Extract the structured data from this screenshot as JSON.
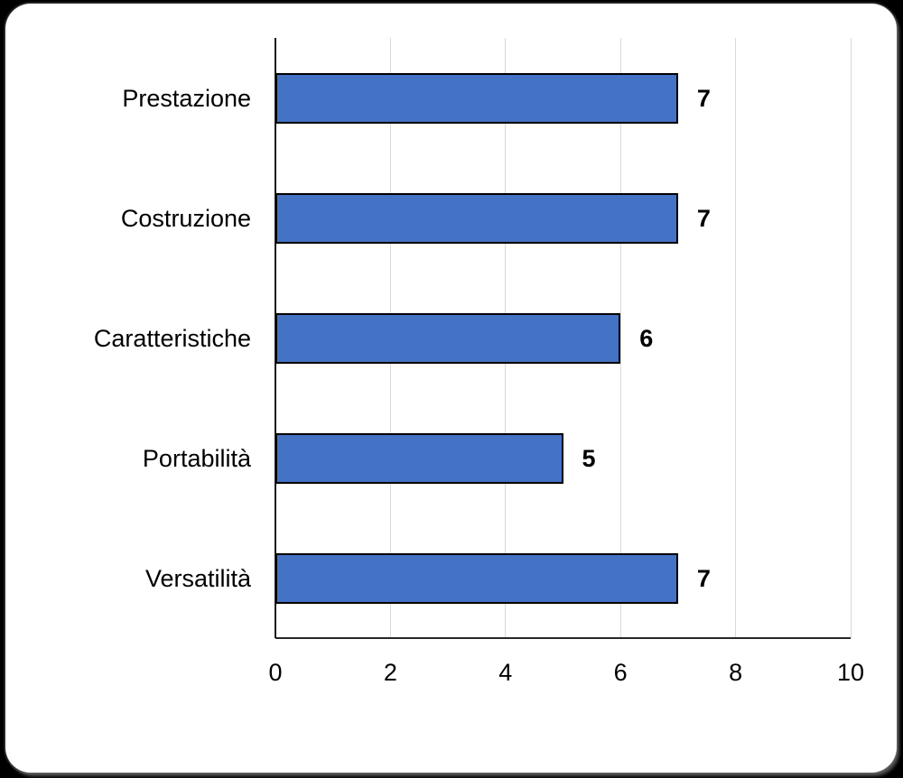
{
  "canvas": {
    "background_color": "#000000",
    "card_background_color": "#ffffff"
  },
  "chart_data": {
    "type": "bar",
    "orientation": "horizontal",
    "title": "",
    "xlabel": "",
    "ylabel": "",
    "categories": [
      "Prestazione",
      "Costruzione",
      "Caratteristiche",
      "Portabilità",
      "Versatilità"
    ],
    "values": [
      7,
      7,
      6,
      5,
      7
    ],
    "data_labels": [
      "7",
      "7",
      "6",
      "5",
      "7"
    ],
    "xlim": [
      0,
      10
    ],
    "x_ticks": [
      0,
      2,
      4,
      6,
      8,
      10
    ],
    "grid": "vertical",
    "legend": "none",
    "bar_color": "#4472C4",
    "bar_border_color": "#000000",
    "gridline_color": "#D9D9D9",
    "axis_color": "#1A1A1A",
    "text_color": "#000000"
  }
}
